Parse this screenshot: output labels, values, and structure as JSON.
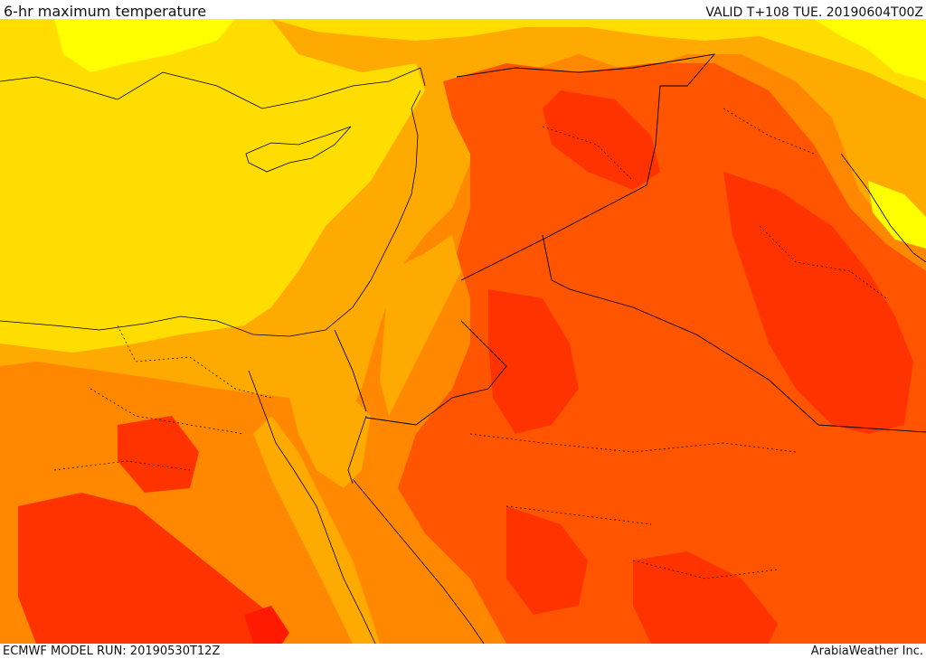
{
  "header": {
    "title": "6-hr maximum temperature",
    "valid_time": "VALID T+108 TUE. 20190604T00Z"
  },
  "footer": {
    "model_run": "ECMWF MODEL RUN: 20190530T12Z",
    "credit": "ArabiaWeather Inc."
  },
  "map": {
    "field": "6-hr maximum temperature",
    "palette": {
      "yellow_light": "#ffff00",
      "yellow": "#ffdd00",
      "amber": "#ffaa00",
      "orange": "#ff8800",
      "orange_red": "#ff5500",
      "red": "#ff3300",
      "deep_red": "#ff1a00"
    },
    "border_color": "#000000"
  }
}
